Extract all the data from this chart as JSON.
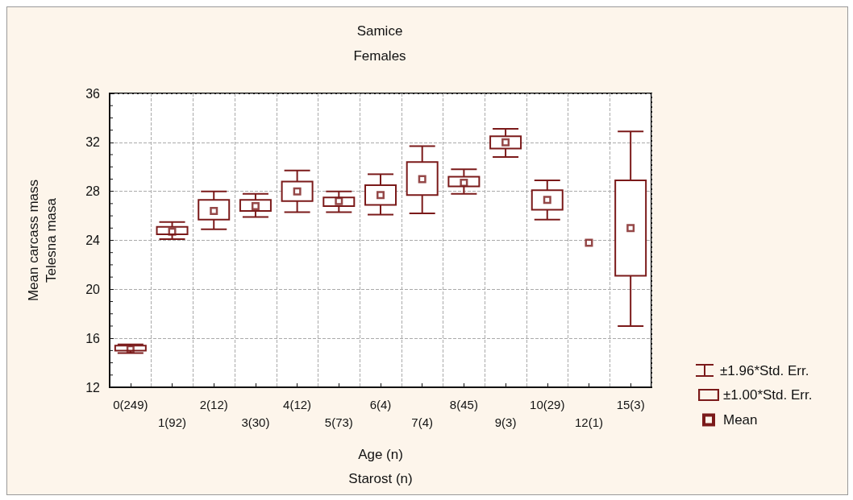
{
  "chart_data": {
    "type": "scatter",
    "title": "Samice",
    "subtitle": "Females",
    "xlabel": "Age (n)\nStarost (n)",
    "ylabel": "Mean carcass mass\nTelesna masa",
    "annotations": [
      "±1.96*Std. Err."
    ],
    "categories": [
      "0(249)",
      "1(92)",
      "2(12)",
      "3(30)",
      "4(12)",
      "5(73)",
      "6(4)",
      "7(4)",
      "8(45)",
      "9(3)",
      "10(29)",
      "12(1)",
      "15(3)"
    ],
    "series": [
      {
        "name": "Mean",
        "color": "#7b1a1a",
        "marker": "square",
        "values": [
          15.1,
          24.7,
          26.4,
          26.8,
          28.0,
          27.2,
          27.7,
          29.0,
          28.7,
          32.0,
          27.3,
          23.8,
          25.0
        ],
        "errors": [
          [
            14.8,
            15.5
          ],
          [
            24.1,
            25.5
          ],
          [
            24.9,
            28.0
          ],
          [
            25.9,
            27.8
          ],
          [
            26.3,
            29.7
          ],
          [
            26.3,
            28.0
          ],
          [
            26.1,
            29.4
          ],
          [
            26.2,
            31.7
          ],
          [
            27.8,
            29.8
          ],
          [
            30.8,
            33.1
          ],
          [
            25.7,
            28.9
          ],
          null,
          [
            17.0,
            32.9
          ]
        ]
      },
      {
        "name": "±1.00*Std. Err.",
        "color": "#7b1a1a",
        "type": "bar",
        "base": [
          15.0,
          24.5,
          25.7,
          26.4,
          27.2,
          26.8,
          26.9,
          27.7,
          28.4,
          31.5,
          26.5,
          null,
          21.1
        ],
        "values": [
          0.4,
          0.6,
          1.6,
          0.9,
          1.6,
          0.7,
          1.6,
          2.7,
          0.8,
          1.0,
          1.6,
          null,
          7.8
        ]
      }
    ],
    "ylim": [
      12,
      36
    ],
    "yticks": [
      12,
      16,
      20,
      24,
      28,
      32,
      36
    ],
    "grid": true,
    "legend": "right"
  }
}
